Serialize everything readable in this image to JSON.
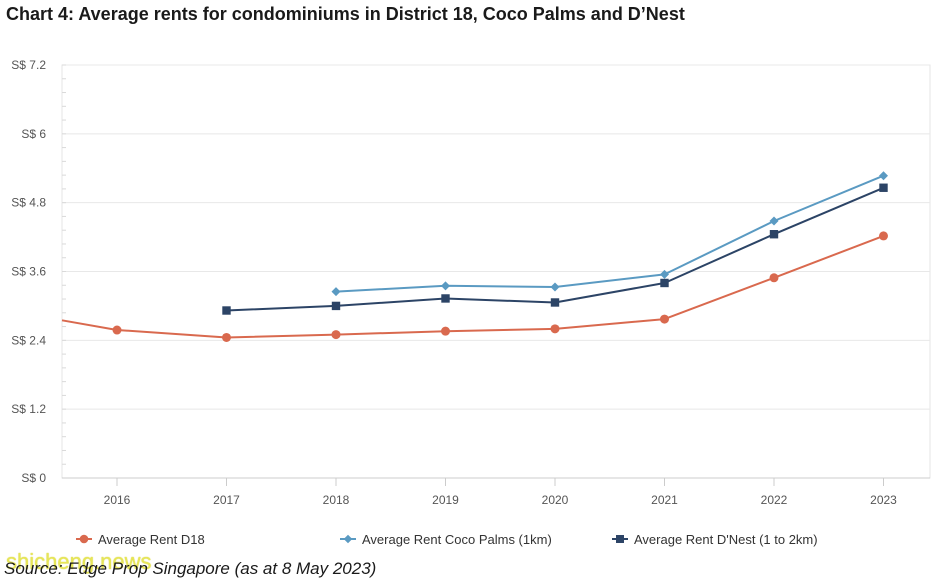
{
  "title": "Chart 4: Average rents for condominiums in District 18, Coco Palms and D’Nest",
  "source": "Source: Edge Prop Singapore (as at 8 May 2023)",
  "watermark": "shicheng.news",
  "chart_data": {
    "type": "line",
    "title": "Chart 4: Average rents for condominiums in District 18, Coco Palms and D’Nest",
    "xlabel": "",
    "ylabel": "",
    "categories": [
      "2016",
      "2017",
      "2018",
      "2019",
      "2020",
      "2021",
      "2022",
      "2023"
    ],
    "ylim": [
      0,
      7.2
    ],
    "yticks": [
      {
        "value": 0,
        "label": "S$ 0"
      },
      {
        "value": 1.2,
        "label": "S$ 1.2"
      },
      {
        "value": 2.4,
        "label": "S$ 2.4"
      },
      {
        "value": 3.6,
        "label": "S$ 3.6"
      },
      {
        "value": 4.8,
        "label": "S$ 4.8"
      },
      {
        "value": 6,
        "label": "S$ 6"
      },
      {
        "value": 7.2,
        "label": "S$ 7.2"
      }
    ],
    "grid": true,
    "legend_position": "bottom",
    "series": [
      {
        "name": "Average Rent D18",
        "color": "#d9694e",
        "marker": "circle",
        "edge_start_value": 2.75,
        "values": [
          2.58,
          2.45,
          2.5,
          2.56,
          2.6,
          2.77,
          3.49,
          4.22
        ]
      },
      {
        "name": "Average Rent Coco Palms (1km)",
        "color": "#5a9ac2",
        "marker": "diamond",
        "values": [
          null,
          null,
          3.25,
          3.35,
          3.33,
          3.55,
          4.48,
          5.27
        ]
      },
      {
        "name": "Average Rent D'Nest (1 to 2km)",
        "color": "#2c4466",
        "marker": "square",
        "values": [
          null,
          2.92,
          3.0,
          3.13,
          3.06,
          3.4,
          4.25,
          5.06
        ]
      }
    ]
  }
}
